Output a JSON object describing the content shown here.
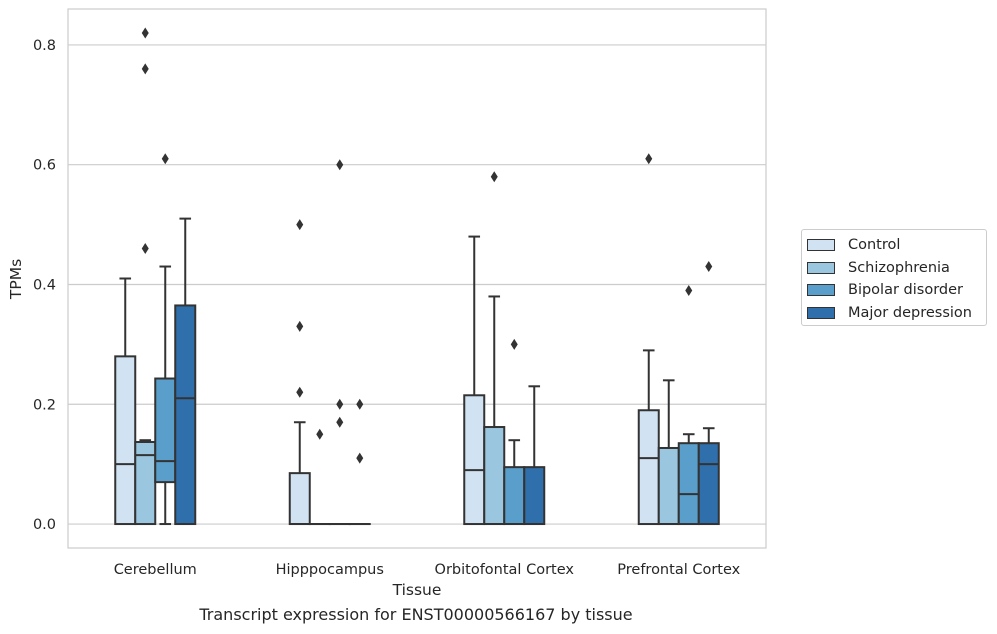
{
  "caption": "Transcript expression for ENST00000566167 by tissue",
  "chart_data": {
    "type": "box",
    "xlabel": "Tissue",
    "ylabel": "TPMs",
    "ylim": [
      -0.04,
      0.86
    ],
    "yticks": [
      "0.0",
      "0.2",
      "0.4",
      "0.6",
      "0.8"
    ],
    "grid": true,
    "legend_position": "right",
    "categories": [
      "Cerebellum",
      "Hipppocampus",
      "Orbitofontal Cortex",
      "Prefrontal Cortex"
    ],
    "series": [
      {
        "name": "Control",
        "color": "#d1e2f2",
        "boxes": [
          {
            "q1": 0.0,
            "median": 0.1,
            "q3": 0.28,
            "whisker_low": 0.0,
            "whisker_high": 0.41,
            "outliers": []
          },
          {
            "q1": 0.0,
            "median": 0.0,
            "q3": 0.085,
            "whisker_low": 0.0,
            "whisker_high": 0.17,
            "outliers": [
              0.22,
              0.33,
              0.5
            ]
          },
          {
            "q1": 0.0,
            "median": 0.09,
            "q3": 0.215,
            "whisker_low": 0.0,
            "whisker_high": 0.48,
            "outliers": []
          },
          {
            "q1": 0.0,
            "median": 0.11,
            "q3": 0.19,
            "whisker_low": 0.0,
            "whisker_high": 0.29,
            "outliers": [
              0.61
            ]
          }
        ]
      },
      {
        "name": "Schizophrenia",
        "color": "#9ac6df",
        "boxes": [
          {
            "q1": 0.0,
            "median": 0.115,
            "q3": 0.137,
            "whisker_low": 0.0,
            "whisker_high": 0.14,
            "outliers": [
              0.46,
              0.76,
              0.82
            ]
          },
          {
            "q1": 0.0,
            "median": 0.0,
            "q3": 0.0,
            "whisker_low": 0.0,
            "whisker_high": 0.0,
            "outliers": [
              0.15
            ]
          },
          {
            "q1": 0.0,
            "median": 0.0,
            "q3": 0.162,
            "whisker_low": 0.0,
            "whisker_high": 0.38,
            "outliers": [
              0.58
            ]
          },
          {
            "q1": 0.0,
            "median": 0.0,
            "q3": 0.127,
            "whisker_low": 0.0,
            "whisker_high": 0.24,
            "outliers": []
          }
        ]
      },
      {
        "name": "Bipolar disorder",
        "color": "#5a9fcb",
        "boxes": [
          {
            "q1": 0.07,
            "median": 0.105,
            "q3": 0.243,
            "whisker_low": 0.0,
            "whisker_high": 0.43,
            "outliers": [
              0.61
            ]
          },
          {
            "q1": 0.0,
            "median": 0.0,
            "q3": 0.0,
            "whisker_low": 0.0,
            "whisker_high": 0.0,
            "outliers": [
              0.17,
              0.2,
              0.6
            ]
          },
          {
            "q1": 0.0,
            "median": 0.0,
            "q3": 0.095,
            "whisker_low": 0.0,
            "whisker_high": 0.14,
            "outliers": [
              0.3
            ]
          },
          {
            "q1": 0.0,
            "median": 0.05,
            "q3": 0.135,
            "whisker_low": 0.0,
            "whisker_high": 0.15,
            "outliers": [
              0.39
            ]
          }
        ]
      },
      {
        "name": "Major depression",
        "color": "#2f6fac",
        "boxes": [
          {
            "q1": 0.0,
            "median": 0.21,
            "q3": 0.365,
            "whisker_low": 0.0,
            "whisker_high": 0.51,
            "outliers": []
          },
          {
            "q1": 0.0,
            "median": 0.0,
            "q3": 0.0,
            "whisker_low": 0.0,
            "whisker_high": 0.0,
            "outliers": [
              0.11,
              0.2
            ]
          },
          {
            "q1": 0.0,
            "median": 0.0,
            "q3": 0.095,
            "whisker_low": 0.0,
            "whisker_high": 0.23,
            "outliers": []
          },
          {
            "q1": 0.0,
            "median": 0.1,
            "q3": 0.135,
            "whisker_low": 0.0,
            "whisker_high": 0.16,
            "outliers": [
              0.43
            ]
          }
        ]
      }
    ]
  }
}
